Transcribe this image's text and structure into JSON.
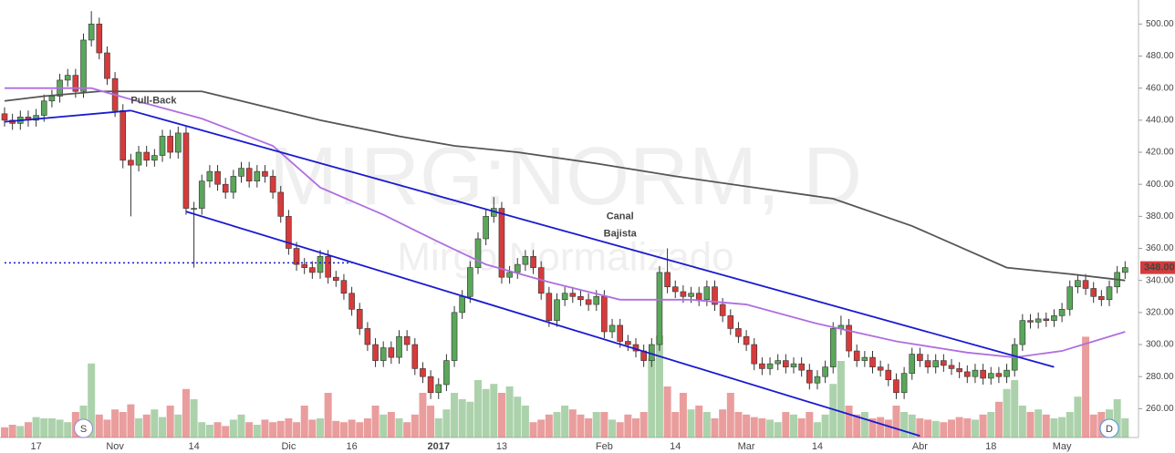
{
  "chart_data": {
    "type": "candlestick",
    "watermark": "MIRG:NORM, D",
    "watermark_sub": "Mirgo Normalizado",
    "annotations": [
      {
        "text": "Pull-Back",
        "color": "#1a1ad0",
        "x": 16,
        "value": 452
      },
      {
        "text": "Canal",
        "color": "#e00000",
        "x": 78,
        "value": 380
      },
      {
        "text": "Bajista",
        "color": "#e00000",
        "x": 78,
        "value": 369
      }
    ],
    "markers": [
      {
        "text": "S",
        "color": "#9a7fd1",
        "x": 10
      },
      {
        "text": "D",
        "color": "#4a90d9",
        "x": 140
      }
    ],
    "categories": [
      null,
      null,
      null,
      null,
      "17",
      null,
      null,
      null,
      null,
      null,
      null,
      null,
      null,
      null,
      "Nov",
      null,
      null,
      null,
      null,
      null,
      null,
      null,
      null,
      null,
      "14",
      null,
      null,
      null,
      null,
      null,
      null,
      null,
      null,
      null,
      null,
      null,
      "Dic",
      null,
      null,
      null,
      null,
      null,
      null,
      null,
      "16",
      null,
      null,
      null,
      null,
      null,
      null,
      null,
      null,
      null,
      null,
      "2017",
      null,
      null,
      null,
      null,
      null,
      null,
      null,
      "13",
      null,
      null,
      null,
      null,
      null,
      null,
      null,
      null,
      null,
      null,
      null,
      null,
      "Feb",
      null,
      null,
      null,
      null,
      null,
      null,
      null,
      null,
      "14",
      null,
      null,
      null,
      null,
      null,
      null,
      null,
      null,
      "Mar",
      null,
      null,
      null,
      null,
      null,
      null,
      null,
      null,
      "14",
      null,
      null,
      null,
      null,
      null,
      null,
      null,
      null,
      null,
      null,
      null,
      null,
      "Abr",
      null,
      null,
      null,
      null,
      null,
      null,
      null,
      null,
      "18",
      null,
      null,
      null,
      null,
      null,
      null,
      null,
      null,
      "May",
      null,
      null,
      null,
      null,
      null,
      null,
      null,
      null
    ],
    "open": [
      444,
      440,
      438,
      442,
      440,
      443,
      452,
      455,
      465,
      468,
      458,
      490,
      500,
      482,
      466,
      446,
      415,
      412,
      420,
      415,
      418,
      430,
      420,
      432,
      385,
      385,
      402,
      408,
      400,
      395,
      405,
      410,
      402,
      408,
      405,
      395,
      380,
      360,
      350,
      348,
      345,
      355,
      342,
      340,
      332,
      322,
      310,
      300,
      290,
      298,
      292,
      305,
      300,
      285,
      280,
      270,
      275,
      290,
      320,
      330,
      348,
      366,
      380,
      385,
      342,
      345,
      350,
      355,
      348,
      332,
      315,
      328,
      332,
      330,
      328,
      325,
      330,
      308,
      312,
      302,
      300,
      296,
      290,
      300,
      345,
      336,
      333,
      330,
      332,
      328,
      336,
      325,
      318,
      310,
      305,
      300,
      288,
      285,
      288,
      290,
      286,
      288,
      284,
      276,
      280,
      286,
      310,
      312,
      296,
      290,
      292,
      286,
      284,
      278,
      270,
      282,
      294,
      290,
      286,
      290,
      287,
      285,
      283,
      280,
      284,
      279,
      282,
      280,
      284,
      300,
      315,
      314,
      316,
      315,
      318,
      322,
      336,
      340,
      335,
      330,
      328,
      336,
      345
    ],
    "high": [
      448,
      444,
      446,
      446,
      447,
      456,
      459,
      469,
      472,
      472,
      494,
      508,
      504,
      486,
      470,
      450,
      419,
      424,
      424,
      422,
      434,
      434,
      436,
      436,
      389,
      406,
      412,
      412,
      404,
      409,
      414,
      414,
      412,
      412,
      409,
      399,
      384,
      364,
      354,
      352,
      359,
      359,
      346,
      344,
      336,
      326,
      314,
      304,
      302,
      302,
      309,
      309,
      304,
      289,
      284,
      279,
      294,
      324,
      334,
      352,
      370,
      384,
      392,
      389,
      349,
      354,
      359,
      359,
      352,
      336,
      332,
      336,
      336,
      334,
      332,
      334,
      334,
      316,
      316,
      306,
      304,
      300,
      304,
      349,
      360,
      340,
      337,
      336,
      336,
      340,
      340,
      329,
      322,
      314,
      309,
      304,
      292,
      292,
      294,
      294,
      292,
      292,
      288,
      284,
      290,
      314,
      318,
      316,
      300,
      296,
      296,
      290,
      288,
      282,
      286,
      298,
      298,
      294,
      294,
      294,
      291,
      289,
      287,
      288,
      288,
      286,
      286,
      288,
      304,
      319,
      319,
      320,
      320,
      322,
      326,
      340,
      344,
      344,
      339,
      334,
      340,
      349,
      352
    ],
    "low": [
      436,
      434,
      434,
      436,
      436,
      439,
      448,
      451,
      461,
      454,
      454,
      486,
      478,
      462,
      442,
      410,
      380,
      408,
      411,
      411,
      414,
      416,
      416,
      381,
      348,
      381,
      398,
      396,
      391,
      391,
      401,
      398,
      398,
      401,
      391,
      376,
      356,
      346,
      344,
      341,
      341,
      338,
      336,
      328,
      318,
      306,
      296,
      286,
      286,
      288,
      288,
      296,
      281,
      276,
      266,
      266,
      271,
      286,
      316,
      326,
      344,
      362,
      376,
      338,
      338,
      341,
      346,
      344,
      328,
      311,
      311,
      324,
      326,
      324,
      321,
      321,
      304,
      304,
      298,
      296,
      292,
      286,
      286,
      296,
      332,
      329,
      326,
      326,
      324,
      324,
      321,
      314,
      306,
      301,
      296,
      284,
      281,
      281,
      284,
      282,
      282,
      280,
      272,
      272,
      276,
      282,
      306,
      292,
      286,
      286,
      282,
      280,
      274,
      266,
      266,
      278,
      286,
      282,
      282,
      283,
      281,
      279,
      276,
      276,
      275,
      275,
      276,
      276,
      280,
      296,
      310,
      310,
      311,
      311,
      314,
      318,
      332,
      331,
      326,
      324,
      324,
      332,
      341
    ],
    "close": [
      440,
      438,
      442,
      440,
      443,
      452,
      455,
      465,
      468,
      458,
      490,
      500,
      482,
      466,
      446,
      415,
      412,
      420,
      415,
      418,
      430,
      420,
      432,
      385,
      385,
      402,
      408,
      400,
      395,
      405,
      410,
      402,
      408,
      405,
      395,
      380,
      360,
      350,
      348,
      345,
      355,
      342,
      340,
      332,
      322,
      310,
      300,
      290,
      298,
      292,
      305,
      300,
      285,
      280,
      270,
      275,
      290,
      320,
      330,
      348,
      366,
      380,
      385,
      342,
      345,
      350,
      355,
      348,
      332,
      315,
      328,
      332,
      330,
      328,
      325,
      330,
      308,
      312,
      302,
      300,
      296,
      290,
      300,
      345,
      336,
      333,
      330,
      332,
      328,
      336,
      325,
      318,
      310,
      305,
      300,
      288,
      285,
      288,
      290,
      286,
      288,
      284,
      276,
      280,
      286,
      310,
      312,
      296,
      290,
      292,
      286,
      284,
      278,
      270,
      282,
      294,
      290,
      286,
      290,
      287,
      285,
      283,
      280,
      284,
      279,
      282,
      280,
      284,
      300,
      315,
      314,
      316,
      315,
      318,
      322,
      336,
      340,
      335,
      330,
      328,
      336,
      345,
      348
    ],
    "volume": [
      8,
      10,
      9,
      12,
      16,
      15,
      15,
      14,
      12,
      20,
      25,
      58,
      18,
      14,
      22,
      20,
      26,
      15,
      18,
      22,
      16,
      25,
      18,
      38,
      30,
      12,
      10,
      12,
      9,
      14,
      18,
      12,
      10,
      14,
      12,
      13,
      15,
      12,
      25,
      14,
      15,
      35,
      13,
      12,
      14,
      12,
      15,
      25,
      18,
      20,
      15,
      12,
      18,
      35,
      25,
      15,
      22,
      35,
      30,
      28,
      45,
      38,
      42,
      35,
      40,
      32,
      25,
      12,
      14,
      18,
      20,
      25,
      22,
      18,
      15,
      20,
      20,
      14,
      12,
      18,
      15,
      20,
      62,
      80,
      40,
      20,
      35,
      22,
      25,
      20,
      15,
      22,
      35,
      20,
      18,
      16,
      15,
      14,
      12,
      20,
      18,
      15,
      20,
      12,
      18,
      42,
      60,
      25,
      18,
      20,
      15,
      16,
      14,
      25,
      20,
      18,
      15,
      14,
      13,
      12,
      14,
      16,
      15,
      14,
      18,
      20,
      28,
      38,
      45,
      25,
      20,
      22,
      18,
      15,
      16,
      20,
      32,
      79,
      18,
      20,
      22,
      30,
      15
    ],
    "vlim": [
      0,
      100
    ],
    "up_color": "#5aa65a",
    "down_color": "#d63b3b",
    "lines": [
      {
        "color": "#555555",
        "x": [
          0,
          5,
          12,
          25,
          30,
          40,
          50,
          57,
          65,
          75,
          85,
          95,
          105,
          115,
          127,
          135,
          142
        ],
        "values": [
          452,
          455,
          458,
          458,
          452,
          440,
          430,
          424,
          420,
          413,
          405,
          398,
          391,
          374,
          348,
          344,
          340
        ]
      },
      {
        "color": "#b06ee0",
        "x": [
          0,
          11,
          16,
          25,
          34,
          40,
          48,
          55,
          61,
          69,
          78,
          87,
          94,
          103,
          113,
          122,
          128,
          134,
          142
        ],
        "values": [
          460,
          460,
          453,
          441,
          424,
          398,
          381,
          364,
          350,
          339,
          328,
          328,
          325,
          313,
          302,
          295,
          292,
          296,
          308
        ]
      }
    ],
    "trendlines": [
      {
        "color": "#1a1ad0",
        "x": [
          0,
          16
        ],
        "values": [
          439,
          446
        ]
      },
      {
        "color": "#1a1ad0",
        "x": [
          16,
          133
        ],
        "values": [
          446,
          286
        ]
      },
      {
        "color": "#1a1ad0",
        "x": [
          23,
          116
        ],
        "values": [
          383,
          243
        ]
      },
      {
        "color": "#1a1ad0",
        "x": [
          0,
          44
        ],
        "values": [
          351,
          351
        ],
        "dash": "2,3"
      }
    ],
    "last_price": {
      "value": 348,
      "label": "348.00"
    },
    "ylim": [
      242,
      515
    ],
    "yticks": [
      {
        "value": 260,
        "label": "260.00"
      },
      {
        "value": 280,
        "label": "280.00"
      },
      {
        "value": 300,
        "label": "300.00"
      },
      {
        "value": 320,
        "label": "320.00"
      },
      {
        "value": 340,
        "label": "340.00"
      },
      {
        "value": 360,
        "label": "360.00"
      },
      {
        "value": 380,
        "label": "380.00"
      },
      {
        "value": 400,
        "label": "400.00"
      },
      {
        "value": 420,
        "label": "420.00"
      },
      {
        "value": 440,
        "label": "440.00"
      },
      {
        "value": 460,
        "label": "460.00"
      },
      {
        "value": 480,
        "label": "480.00"
      },
      {
        "value": 500,
        "label": "500.00"
      }
    ]
  }
}
